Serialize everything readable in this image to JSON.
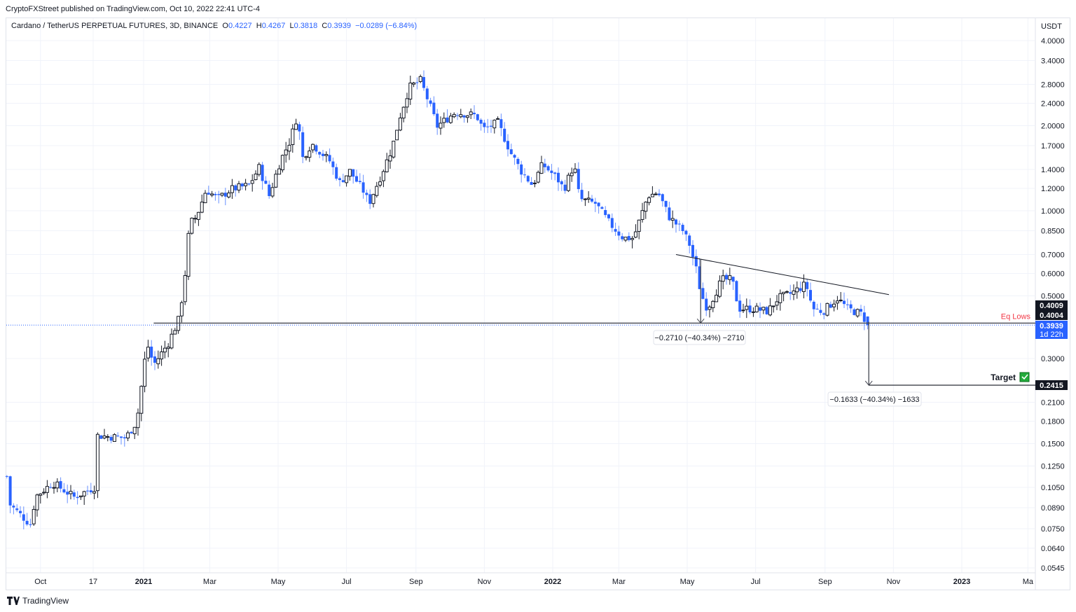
{
  "published": "CryptoFXStreet published on TradingView.com, Oct 10, 2022 22:41 UTC-4",
  "legend": {
    "symbol": "Cardano / TetherUS PERPETUAL FUTURES, 3D, BINANCE",
    "o_label": "O",
    "o": "0.4227",
    "h_label": "H",
    "h": "0.4267",
    "l_label": "L",
    "l": "0.3818",
    "c_label": "C",
    "c": "0.3939",
    "change": "−0.0289 (−6.84%)"
  },
  "brand": "TradingView",
  "chart_data": {
    "type": "candlestick",
    "interval": "3D",
    "y_scale": "log",
    "y_unit": "USDT",
    "ylim": [
      0.052,
      4.6
    ],
    "grid": true,
    "colors": {
      "up_border": "#131722",
      "up_fill": "#ffffff",
      "down": "#2962ff",
      "annotation_red": "#f23645",
      "target_green": "#22ab3b"
    },
    "y_ticks": [
      "4.0000",
      "3.4000",
      "2.8000",
      "2.4000",
      "2.0000",
      "1.7000",
      "1.4000",
      "1.2000",
      "1.0000",
      "0.8500",
      "0.7000",
      "0.6000",
      "0.5000",
      "0.3000",
      "0.2100",
      "0.1800",
      "0.1500",
      "0.1250",
      "0.1050",
      "0.0890",
      "0.0750",
      "0.0640",
      "0.0545"
    ],
    "x_ticks": [
      {
        "label": "Oct",
        "date": "2020-10-01",
        "bold": false
      },
      {
        "label": "17",
        "date": "2020-11-17",
        "bold": false
      },
      {
        "label": "2021",
        "date": "2021-01-01",
        "bold": true
      },
      {
        "label": "Mar",
        "date": "2021-03-01",
        "bold": false
      },
      {
        "label": "May",
        "date": "2021-05-01",
        "bold": false
      },
      {
        "label": "Jul",
        "date": "2021-07-01",
        "bold": false
      },
      {
        "label": "Sep",
        "date": "2021-09-01",
        "bold": false
      },
      {
        "label": "Nov",
        "date": "2021-11-01",
        "bold": false
      },
      {
        "label": "2022",
        "date": "2022-01-01",
        "bold": true
      },
      {
        "label": "Mar",
        "date": "2022-03-01",
        "bold": false
      },
      {
        "label": "May",
        "date": "2022-05-01",
        "bold": false
      },
      {
        "label": "Jul",
        "date": "2022-07-01",
        "bold": false
      },
      {
        "label": "Sep",
        "date": "2022-09-01",
        "bold": false
      },
      {
        "label": "Nov",
        "date": "2022-11-01",
        "bold": false
      },
      {
        "label": "2023",
        "date": "2023-01-01",
        "bold": true
      },
      {
        "label": "Ma",
        "date": "2023-03-01",
        "bold": false
      }
    ],
    "first_candle": "2020-09-01",
    "last_candle": "2022-10-09",
    "close_path": [
      [
        "2020-09-01",
        0.115
      ],
      [
        "2020-09-04",
        0.091
      ],
      [
        "2020-09-23",
        0.077
      ],
      [
        "2020-09-26",
        0.097
      ],
      [
        "2020-10-12",
        0.109
      ],
      [
        "2020-10-31",
        0.097
      ],
      [
        "2020-11-18",
        0.105
      ],
      [
        "2020-11-21",
        0.16
      ],
      [
        "2020-12-16",
        0.157
      ],
      [
        "2020-12-26",
        0.18
      ],
      [
        "2021-01-04",
        0.34
      ],
      [
        "2021-01-10",
        0.285
      ],
      [
        "2021-01-23",
        0.34
      ],
      [
        "2021-02-01",
        0.41
      ],
      [
        "2021-02-06",
        0.54
      ],
      [
        "2021-02-11",
        0.9
      ],
      [
        "2021-02-17",
        0.95
      ],
      [
        "2021-02-26",
        1.19
      ],
      [
        "2021-03-08",
        1.1
      ],
      [
        "2021-03-20",
        1.19
      ],
      [
        "2021-04-05",
        1.23
      ],
      [
        "2021-04-14",
        1.42
      ],
      [
        "2021-04-23",
        1.13
      ],
      [
        "2021-05-03",
        1.5
      ],
      [
        "2021-05-12",
        1.78
      ],
      [
        "2021-05-18",
        2.17
      ],
      [
        "2021-05-23",
        1.54
      ],
      [
        "2021-05-31",
        1.73
      ],
      [
        "2021-06-16",
        1.5
      ],
      [
        "2021-06-25",
        1.26
      ],
      [
        "2021-07-04",
        1.38
      ],
      [
        "2021-07-17",
        1.16
      ],
      [
        "2021-07-21",
        1.06
      ],
      [
        "2021-08-01",
        1.34
      ],
      [
        "2021-08-11",
        1.68
      ],
      [
        "2021-08-17",
        2.11
      ],
      [
        "2021-08-26",
        2.73
      ],
      [
        "2021-09-05",
        2.89
      ],
      [
        "2021-09-11",
        2.5
      ],
      [
        "2021-09-20",
        1.99
      ],
      [
        "2021-10-06",
        2.23
      ],
      [
        "2021-10-25",
        2.17
      ],
      [
        "2021-10-31",
        1.94
      ],
      [
        "2021-11-13",
        2.05
      ],
      [
        "2021-11-25",
        1.59
      ],
      [
        "2021-12-04",
        1.38
      ],
      [
        "2021-12-14",
        1.23
      ],
      [
        "2021-12-23",
        1.46
      ],
      [
        "2022-01-05",
        1.3
      ],
      [
        "2022-01-11",
        1.19
      ],
      [
        "2022-01-20",
        1.46
      ],
      [
        "2022-01-25",
        1.1
      ],
      [
        "2022-02-08",
        1.06
      ],
      [
        "2022-02-21",
        0.9
      ],
      [
        "2022-03-05",
        0.8
      ],
      [
        "2022-03-14",
        0.8
      ],
      [
        "2022-03-27",
        1.13
      ],
      [
        "2022-04-05",
        1.16
      ],
      [
        "2022-04-15",
        0.95
      ],
      [
        "2022-04-27",
        0.85
      ],
      [
        "2022-05-03",
        0.76
      ],
      [
        "2022-05-10",
        0.6
      ],
      [
        "2022-05-13",
        0.51
      ],
      [
        "2022-05-19",
        0.45
      ],
      [
        "2022-06-01",
        0.57
      ],
      [
        "2022-06-10",
        0.57
      ],
      [
        "2022-06-16",
        0.45
      ],
      [
        "2022-06-29",
        0.45
      ],
      [
        "2022-07-12",
        0.44
      ],
      [
        "2022-07-21",
        0.49
      ],
      [
        "2022-08-02",
        0.51
      ],
      [
        "2022-08-15",
        0.55
      ],
      [
        "2022-08-21",
        0.45
      ],
      [
        "2022-08-30",
        0.44
      ],
      [
        "2022-09-12",
        0.49
      ],
      [
        "2022-09-21",
        0.45
      ],
      [
        "2022-10-04",
        0.43
      ],
      [
        "2022-10-09",
        0.3939
      ]
    ],
    "annotations": {
      "eq_lows": {
        "label": "Eq Lows",
        "price": 0.4004,
        "from": "2021-01-10"
      },
      "trendline": {
        "from": [
          "2022-04-21",
          0.7
        ],
        "to": [
          "2022-10-28",
          0.505
        ]
      },
      "measure_1": {
        "label": "−0.2710 (−40.34%) −2710",
        "date": "2022-05-13",
        "from": 0.6718,
        "to": 0.4008
      },
      "measure_2": {
        "label": "−0.1633 (−40.34%) −1633",
        "date": "2022-10-10",
        "from": 0.4048,
        "to": 0.2415
      },
      "target": {
        "label": "Target",
        "price": 0.2415
      }
    },
    "axis_labels": [
      {
        "text": "0.4009",
        "price": 0.4009,
        "style": "black"
      },
      {
        "text": "0.4004",
        "price": 0.4004,
        "style": "black"
      },
      {
        "text": "0.3939",
        "sub": "1d 22h",
        "price": 0.3939,
        "style": "blue"
      },
      {
        "text": "0.2415",
        "price": 0.2415,
        "style": "black"
      }
    ]
  }
}
